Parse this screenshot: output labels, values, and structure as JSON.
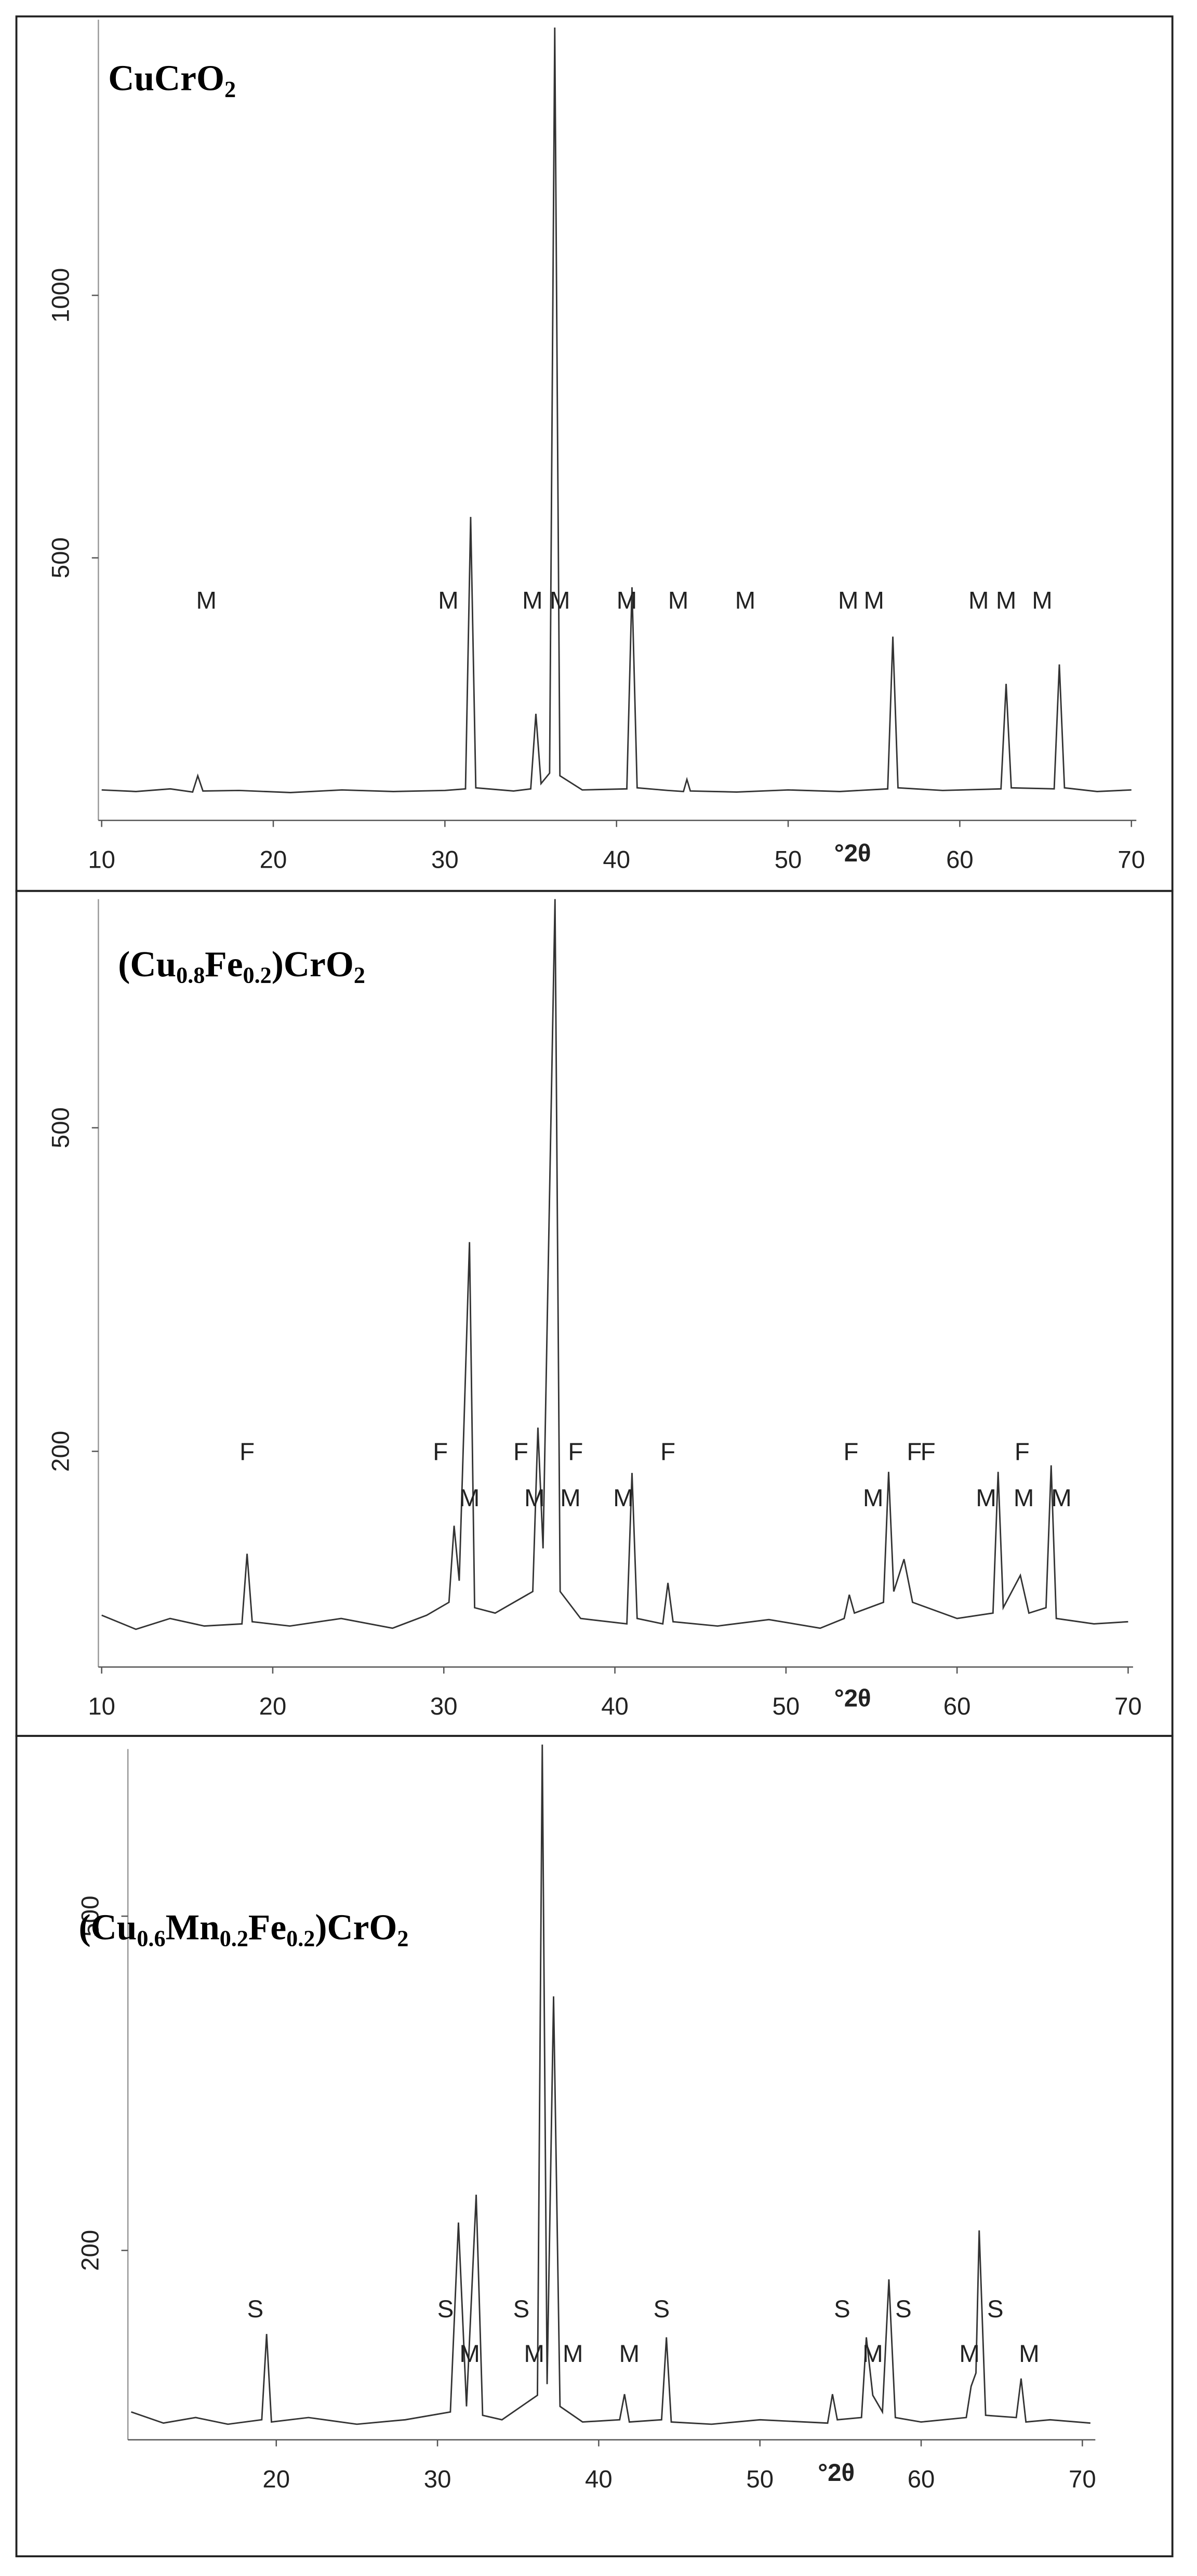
{
  "chart_data": [
    {
      "type": "line",
      "title": [
        "CuCrO",
        "2"
      ],
      "xlabel": "°2θ",
      "color": "#333333",
      "xlim": [
        10,
        70
      ],
      "xticks": [
        10,
        20,
        30,
        40,
        50,
        60,
        70
      ],
      "ylim": [
        0,
        1525
      ],
      "yticks": [
        500,
        1000
      ],
      "x": [
        10,
        12,
        14,
        15.3,
        15.6,
        15.9,
        18,
        21,
        24,
        27,
        30,
        31.2,
        31.5,
        31.8,
        34,
        35.0,
        35.3,
        35.6,
        36.1,
        36.4,
        36.7,
        38,
        40.6,
        40.9,
        41.2,
        43,
        43.9,
        44.1,
        44.3,
        47,
        50,
        53,
        55.8,
        56.1,
        56.4,
        59,
        62.4,
        62.7,
        63.0,
        65.5,
        65.8,
        66.1,
        68,
        70
      ],
      "values": [
        58,
        55,
        60,
        54,
        85,
        56,
        57,
        53,
        58,
        55,
        57,
        60,
        578,
        62,
        56,
        60,
        203,
        70,
        90,
        1510,
        85,
        58,
        60,
        444,
        62,
        57,
        55,
        78,
        56,
        54,
        58,
        55,
        60,
        350,
        62,
        57,
        60,
        260,
        62,
        60,
        297,
        62,
        55,
        58
      ],
      "annotations": [
        {
          "text": "M",
          "x": 16.1,
          "y": 403
        },
        {
          "text": "M",
          "x": 30.2,
          "y": 403
        },
        {
          "text": "M",
          "x": 35.1,
          "y": 403
        },
        {
          "text": "M",
          "x": 36.7,
          "y": 403
        },
        {
          "text": "M",
          "x": 40.6,
          "y": 403
        },
        {
          "text": "M",
          "x": 43.6,
          "y": 403
        },
        {
          "text": "M",
          "x": 47.5,
          "y": 403
        },
        {
          "text": "M",
          "x": 53.5,
          "y": 403
        },
        {
          "text": "M",
          "x": 55.0,
          "y": 403
        },
        {
          "text": "M",
          "x": 61.1,
          "y": 403
        },
        {
          "text": "M",
          "x": 62.7,
          "y": 403
        },
        {
          "text": "M",
          "x": 64.8,
          "y": 403
        }
      ]
    },
    {
      "type": "line",
      "title": [
        "(Cu",
        "0.8",
        "Fe",
        "0.2",
        ")CrO",
        "2"
      ],
      "xlabel": "°2θ",
      "color": "#333333",
      "xlim": [
        10,
        70
      ],
      "xticks": [
        10,
        20,
        30,
        40,
        50,
        60,
        70
      ],
      "ylim": [
        0,
        712
      ],
      "yticks": [
        200,
        500
      ],
      "x": [
        10,
        12,
        14,
        16,
        18.2,
        18.5,
        18.8,
        21,
        24,
        27,
        29,
        30.3,
        30.6,
        30.9,
        31.5,
        31.8,
        33,
        35.2,
        35.5,
        35.8,
        36.5,
        36.8,
        38,
        40.7,
        41.0,
        41.3,
        42.8,
        43.1,
        43.4,
        46,
        49,
        52,
        53.4,
        53.7,
        54.0,
        55.7,
        56.0,
        56.3,
        56.9,
        57.4,
        60,
        62.1,
        62.4,
        62.7,
        63.7,
        64.2,
        65.2,
        65.5,
        65.8,
        68,
        70
      ],
      "values": [
        48,
        35,
        45,
        38,
        40,
        105,
        42,
        38,
        45,
        36,
        48,
        60,
        131,
        80,
        394,
        55,
        50,
        70,
        222,
        110,
        712,
        70,
        45,
        40,
        180,
        45,
        40,
        78,
        42,
        38,
        44,
        36,
        45,
        67,
        50,
        60,
        181,
        70,
        100,
        60,
        45,
        50,
        181,
        55,
        85,
        50,
        55,
        187,
        45,
        40,
        42
      ],
      "annotations": [
        {
          "text": "F",
          "x": 18.5,
          "y": 192
        },
        {
          "text": "F",
          "x": 29.8,
          "y": 192
        },
        {
          "text": "F",
          "x": 34.5,
          "y": 192
        },
        {
          "text": "F",
          "x": 37.7,
          "y": 192
        },
        {
          "text": "F",
          "x": 43.1,
          "y": 192
        },
        {
          "text": "F",
          "x": 53.8,
          "y": 192
        },
        {
          "text": "F",
          "x": 57.5,
          "y": 192
        },
        {
          "text": "F",
          "x": 58.3,
          "y": 192
        },
        {
          "text": "F",
          "x": 63.8,
          "y": 192
        },
        {
          "text": "M",
          "x": 31.5,
          "y": 149
        },
        {
          "text": "M",
          "x": 35.3,
          "y": 149
        },
        {
          "text": "M",
          "x": 37.4,
          "y": 149
        },
        {
          "text": "M",
          "x": 40.5,
          "y": 149
        },
        {
          "text": "M",
          "x": 55.1,
          "y": 149
        },
        {
          "text": "M",
          "x": 61.7,
          "y": 149
        },
        {
          "text": "M",
          "x": 63.9,
          "y": 149
        },
        {
          "text": "M",
          "x": 66.1,
          "y": 149
        }
      ]
    },
    {
      "type": "line",
      "title": [
        "(Cu",
        "0.6",
        "Mn",
        "0.2",
        "Fe",
        "0.2",
        ")CrO",
        "2"
      ],
      "xlabel": "°2θ",
      "color": "#333333",
      "xlim": [
        11,
        70.5
      ],
      "xticks": [
        20,
        30,
        40,
        50,
        60,
        70
      ],
      "ylim": [
        30,
        650
      ],
      "yticks": [
        200,
        500
      ],
      "x": [
        11,
        13,
        15,
        17,
        19.1,
        19.4,
        19.7,
        22,
        25,
        28,
        30.8,
        31.3,
        31.8,
        32.4,
        32.8,
        34,
        36.2,
        36.5,
        36.8,
        37.2,
        37.6,
        39,
        41.3,
        41.6,
        41.9,
        43.9,
        44.2,
        44.5,
        47,
        50,
        54.2,
        54.5,
        54.8,
        56.3,
        56.6,
        57.0,
        57.6,
        58.0,
        58.4,
        60,
        62.8,
        63.1,
        63.4,
        63.6,
        64.0,
        65.9,
        66.2,
        66.5,
        68,
        70.5
      ],
      "values": [
        55,
        45,
        50,
        44,
        48,
        125,
        46,
        50,
        44,
        48,
        55,
        225,
        60,
        250,
        52,
        48,
        70,
        654,
        80,
        428,
        60,
        46,
        48,
        71,
        46,
        48,
        122,
        46,
        44,
        48,
        45,
        71,
        48,
        50,
        122,
        70,
        55,
        174,
        50,
        46,
        50,
        78,
        90,
        218,
        52,
        50,
        85,
        46,
        48,
        45
      ],
      "annotations": [
        {
          "text": "S",
          "x": 18.7,
          "y": 140
        },
        {
          "text": "S",
          "x": 30.5,
          "y": 140
        },
        {
          "text": "S",
          "x": 35.2,
          "y": 140
        },
        {
          "text": "S",
          "x": 43.9,
          "y": 140
        },
        {
          "text": "S",
          "x": 55.1,
          "y": 140
        },
        {
          "text": "S",
          "x": 58.9,
          "y": 140
        },
        {
          "text": "S",
          "x": 64.6,
          "y": 140
        },
        {
          "text": "M",
          "x": 32.0,
          "y": 100
        },
        {
          "text": "M",
          "x": 36.0,
          "y": 100
        },
        {
          "text": "M",
          "x": 38.4,
          "y": 100
        },
        {
          "text": "M",
          "x": 41.9,
          "y": 100
        },
        {
          "text": "M",
          "x": 57.0,
          "y": 100
        },
        {
          "text": "M",
          "x": 63.0,
          "y": 100
        },
        {
          "text": "M",
          "x": 66.7,
          "y": 100
        }
      ]
    }
  ]
}
